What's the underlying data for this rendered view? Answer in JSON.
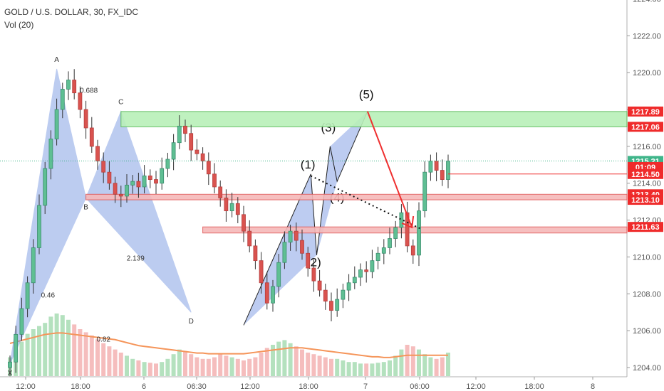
{
  "header": {
    "symbol_line": "GOLD / U.S. DOLLAR, 30, FX_IDC",
    "volume_line": "Vol (20)"
  },
  "chart_data": {
    "type": "candlestick",
    "title": "GOLD / U.S. DOLLAR, 30, FX_IDC",
    "indicator": "Vol (20)",
    "ylim": [
      1203.5,
      1225.0
    ],
    "y_ticks": [
      "1224.00",
      "1222.00",
      "1220.00",
      "1218.00",
      "1216.00",
      "1214.00",
      "1212.00",
      "1210.00",
      "1208.00",
      "1206.00",
      "1204.00"
    ],
    "x_ticks": [
      "12:00",
      "18:00",
      "6",
      "06:30",
      "12:00",
      "18:00",
      "7",
      "06:00",
      "12:00",
      "18:00",
      "8"
    ],
    "grid": false,
    "closes": [
      1204.3,
      1205.8,
      1207.2,
      1208.6,
      1210.5,
      1212.8,
      1214.8,
      1216.4,
      1218.0,
      1219.1,
      1219.6,
      1218.9,
      1218.0,
      1217.0,
      1216.0,
      1215.2,
      1214.6,
      1214.0,
      1213.4,
      1213.3,
      1213.9,
      1214.1,
      1213.8,
      1214.4,
      1214.2,
      1214.0,
      1214.8,
      1215.3,
      1216.2,
      1217.1,
      1216.7,
      1215.8,
      1215.6,
      1215.2,
      1214.5,
      1213.8,
      1213.2,
      1212.5,
      1212.9,
      1212.3,
      1211.4,
      1210.6,
      1209.8,
      1208.6,
      1207.5,
      1208.4,
      1209.7,
      1210.8,
      1211.4,
      1210.9,
      1210.2,
      1209.4,
      1208.7,
      1208.2,
      1207.6,
      1207.1,
      1207.7,
      1208.2,
      1208.6,
      1208.9,
      1209.3,
      1209.2,
      1209.8,
      1210.2,
      1210.5,
      1211.0,
      1211.6,
      1212.4,
      1210.6,
      1210.1,
      1212.5,
      1214.6,
      1215.2,
      1214.7,
      1214.2,
      1215.2
    ],
    "volumes": [
      24,
      34,
      44,
      54,
      60,
      64,
      68,
      76,
      80,
      78,
      72,
      66,
      60,
      56,
      52,
      47,
      42,
      38,
      34,
      30,
      26,
      22,
      20,
      18,
      17,
      16,
      18,
      22,
      28,
      34,
      32,
      28,
      24,
      22,
      22,
      24,
      28,
      26,
      24,
      22,
      20,
      22,
      24,
      30,
      36,
      40,
      44,
      46,
      42,
      38,
      34,
      30,
      28,
      26,
      24,
      22,
      22,
      20,
      18,
      18,
      16,
      16,
      16,
      17,
      18,
      20,
      26,
      34,
      40,
      38,
      34,
      28,
      24,
      22,
      24,
      30
    ],
    "volume_ma": [
      44,
      46,
      48,
      50,
      52,
      54,
      56,
      57,
      58,
      58,
      57,
      56,
      55,
      54,
      53,
      52,
      51,
      50,
      49,
      47,
      45,
      43,
      41,
      40,
      39,
      38,
      37,
      36,
      35,
      34,
      33,
      32,
      31,
      31,
      30,
      30,
      30,
      30,
      30,
      30,
      30,
      31,
      32,
      33,
      34,
      35,
      36,
      37,
      38,
      38,
      38,
      37,
      36,
      35,
      34,
      33,
      32,
      31,
      30,
      29,
      28,
      27,
      26,
      26,
      25,
      25,
      26,
      27,
      28,
      28,
      28,
      28,
      28,
      28,
      28,
      28
    ],
    "price_labels": [
      {
        "text": "1217.89",
        "value": 1217.89,
        "color": "#ef2b2b"
      },
      {
        "text": "1217.06",
        "value": 1217.06,
        "color": "#ef2b2b"
      },
      {
        "text": "1215.21",
        "value": 1215.21,
        "color": "#3fb58a"
      },
      {
        "text": "01:09",
        "value": 1214.88,
        "color": "#ef2b2b"
      },
      {
        "text": "1214.50",
        "value": 1214.5,
        "color": "#ef2b2b"
      },
      {
        "text": "1213.40",
        "value": 1213.4,
        "color": "#ef2b2b"
      },
      {
        "text": "1213.10",
        "value": 1213.1,
        "color": "#ef2b2b"
      },
      {
        "text": "1211.63",
        "value": 1211.63,
        "color": "#ef2b2b"
      }
    ],
    "zones": [
      {
        "type": "resistance",
        "y_top": 1217.89,
        "y_bottom": 1217.06,
        "from_bar": 19
      },
      {
        "type": "support",
        "y_top": 1213.4,
        "y_bottom": 1213.1,
        "from_bar": 13
      },
      {
        "type": "support",
        "y_top": 1211.63,
        "y_bottom": 1211.3,
        "from_bar": 33
      }
    ],
    "harmonic_points": [
      {
        "label": "X",
        "bar": 0,
        "price": 1204.2
      },
      {
        "label": "A",
        "bar": 8,
        "price": 1220.2
      },
      {
        "label": "B",
        "bar": 13,
        "price": 1213.2
      },
      {
        "label": "C",
        "bar": 19,
        "price": 1217.9
      },
      {
        "label": "D",
        "bar": 31,
        "price": 1207.0
      }
    ],
    "ratio_labels": [
      {
        "text": "0.688",
        "bar": 13.5,
        "price": 1218.9
      },
      {
        "text": "2.139",
        "bar": 21.5,
        "price": 1209.8
      },
      {
        "text": "0.46",
        "bar": 6.5,
        "price": 1207.8
      },
      {
        "text": "0.82",
        "bar": 16,
        "price": 1205.4
      }
    ],
    "wave_labels": [
      {
        "text": "(1)",
        "bar": 51,
        "price": 1214.8
      },
      {
        "text": "(2)",
        "bar": 52,
        "price": 1209.5
      },
      {
        "text": "(3)",
        "bar": 54.5,
        "price": 1216.8
      },
      {
        "text": "(4)",
        "bar": 56,
        "price": 1213.0
      },
      {
        "text": "(5)",
        "bar": 61,
        "price": 1218.6
      }
    ],
    "wave_path": [
      {
        "bar": 40,
        "price": 1206.3
      },
      {
        "bar": 51.5,
        "price": 1214.5
      },
      {
        "bar": 52.5,
        "price": 1210.1
      },
      {
        "bar": 54.8,
        "price": 1216.0
      },
      {
        "bar": 56,
        "price": 1214.1
      },
      {
        "bar": 61.2,
        "price": 1217.9
      }
    ],
    "projection_arrow": {
      "from": {
        "bar": 61.2,
        "price": 1217.9
      },
      "to": {
        "bar": 68.8,
        "price": 1211.6
      }
    },
    "trendline": {
      "from": {
        "bar": 51.5,
        "price": 1214.4
      },
      "to": {
        "bar": 70.5,
        "price": 1211.5
      }
    }
  }
}
